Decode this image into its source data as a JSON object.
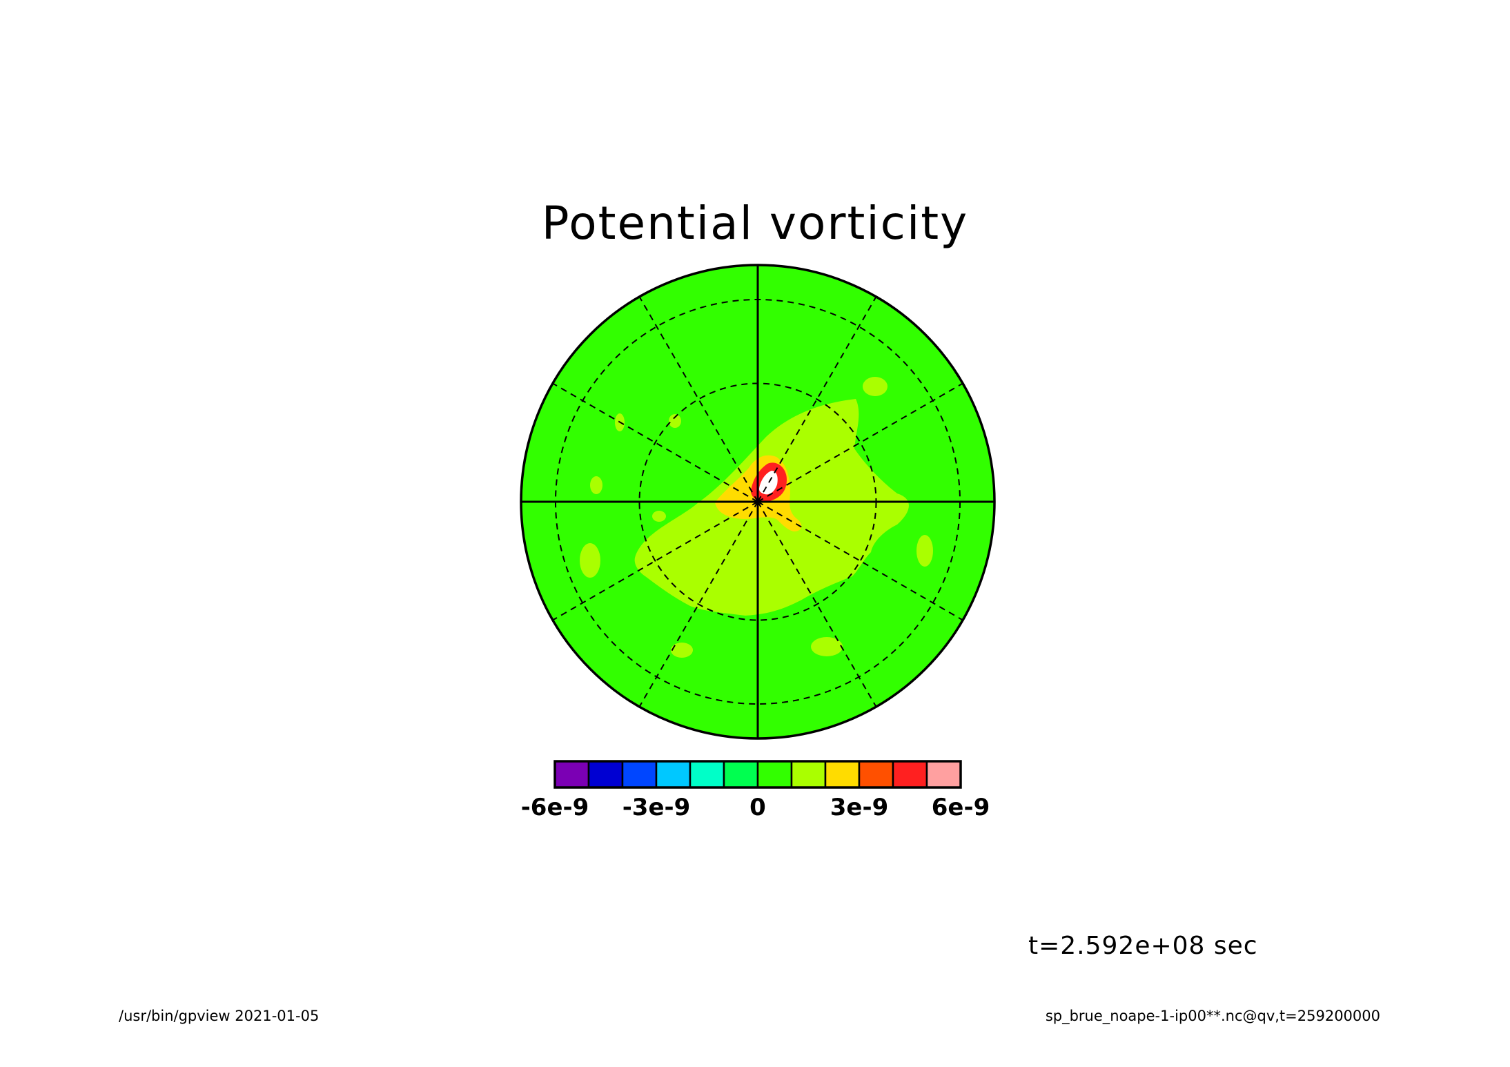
{
  "chart_data": {
    "type": "heatmap",
    "title": "Potential vorticity",
    "projection": "polar",
    "colorbar": {
      "levels": [
        -6e-09,
        -5e-09,
        -4e-09,
        -3e-09,
        -2e-09,
        -1e-09,
        0,
        1e-09,
        2e-09,
        3e-09,
        4e-09,
        5e-09,
        6e-09
      ],
      "colors": [
        "#7b00b4",
        "#0000d2",
        "#0046ff",
        "#00c8ff",
        "#00ffc8",
        "#00ff50",
        "#32ff00",
        "#aaff00",
        "#ffdc00",
        "#ff5000",
        "#ff2020",
        "#ffa0a0"
      ],
      "tick_labels": [
        "-6e-9",
        "-3e-9",
        "0",
        "3e-9",
        "6e-9"
      ],
      "tick_values": [
        -6e-09,
        -3e-09,
        0,
        3e-09,
        6e-09
      ]
    },
    "background_color": "#32ff00",
    "region_colors": {
      "inner": "#aaff00",
      "orange": "#ffdc00",
      "red": "#ff2020",
      "peak": "#ffffff"
    },
    "grid": true
  },
  "annotation": {
    "time": "t=2.592e+08 sec"
  },
  "footer": {
    "left": "/usr/bin/gpview   2021-01-05",
    "right": "sp_brue_noape-1-ip00**.nc@qv,t=259200000"
  }
}
